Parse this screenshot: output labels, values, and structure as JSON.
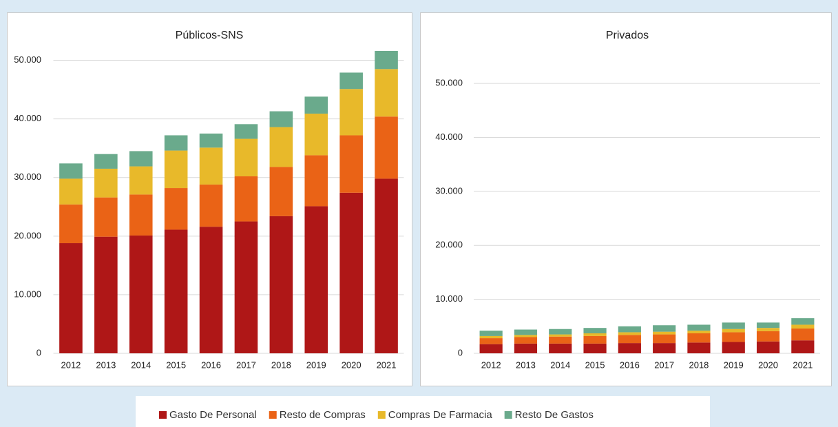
{
  "chart_data": [
    {
      "type": "stacked_bar",
      "title": "Públicos-SNS",
      "categories": [
        "2012",
        "2013",
        "2014",
        "2015",
        "2016",
        "2017",
        "2018",
        "2019",
        "2020",
        "2021"
      ],
      "series": [
        {
          "name": "Gasto De Personal",
          "color": "#af1717",
          "values": [
            18800,
            19900,
            20100,
            21100,
            21600,
            22500,
            23400,
            25100,
            27400,
            29800
          ]
        },
        {
          "name": "Resto de Compras",
          "color": "#ea6316",
          "values": [
            6600,
            6700,
            7000,
            7100,
            7200,
            7700,
            8400,
            8700,
            9800,
            10600
          ]
        },
        {
          "name": "Compras De Farmacia",
          "color": "#e8b92a",
          "values": [
            4400,
            4900,
            4800,
            6400,
            6300,
            6400,
            6800,
            7100,
            7900,
            8100
          ]
        },
        {
          "name": "Resto De Gastos",
          "color": "#6aaa8c",
          "values": [
            2600,
            2500,
            2600,
            2600,
            2400,
            2500,
            2700,
            2900,
            2800,
            3100
          ]
        }
      ],
      "ylim": [
        0,
        55000
      ],
      "yticks": [
        0,
        {
          "value": 10000,
          "label": "10.000"
        },
        {
          "value": 20000,
          "label": "20.000"
        },
        {
          "value": 30000,
          "label": "30.000"
        },
        {
          "value": 40000,
          "label": "40.000"
        },
        {
          "value": 50000,
          "label": "50.000"
        }
      ],
      "grid": true
    },
    {
      "type": "stacked_bar",
      "title": "Privados",
      "categories": [
        "2012",
        "2013",
        "2014",
        "2015",
        "2016",
        "2017",
        "2018",
        "2019",
        "2020",
        "2021"
      ],
      "series": [
        {
          "color": "#af1717",
          "values": [
            1700,
            1800,
            1800,
            1800,
            1900,
            1900,
            2000,
            2100,
            2200,
            2400
          ]
        },
        {
          "color": "#ea6316",
          "values": [
            1100,
            1200,
            1300,
            1400,
            1500,
            1600,
            1700,
            1800,
            1900,
            2200
          ]
        },
        {
          "color": "#e8b92a",
          "values": [
            400,
            400,
            400,
            500,
            500,
            500,
            500,
            600,
            600,
            700
          ]
        },
        {
          "color": "#6aaa8c",
          "values": [
            1000,
            1000,
            1000,
            1000,
            1100,
            1200,
            1100,
            1200,
            1000,
            1200
          ]
        }
      ],
      "ylim": [
        0,
        55000
      ],
      "yticks": [
        0,
        {
          "value": 10000,
          "label": "10.000"
        },
        {
          "value": 20000,
          "label": "20.000"
        },
        {
          "value": 30000,
          "label": "30.000"
        },
        {
          "value": 40000,
          "label": "40.000"
        },
        {
          "value": 50000,
          "label": "50.000"
        }
      ],
      "grid": true
    }
  ]
}
